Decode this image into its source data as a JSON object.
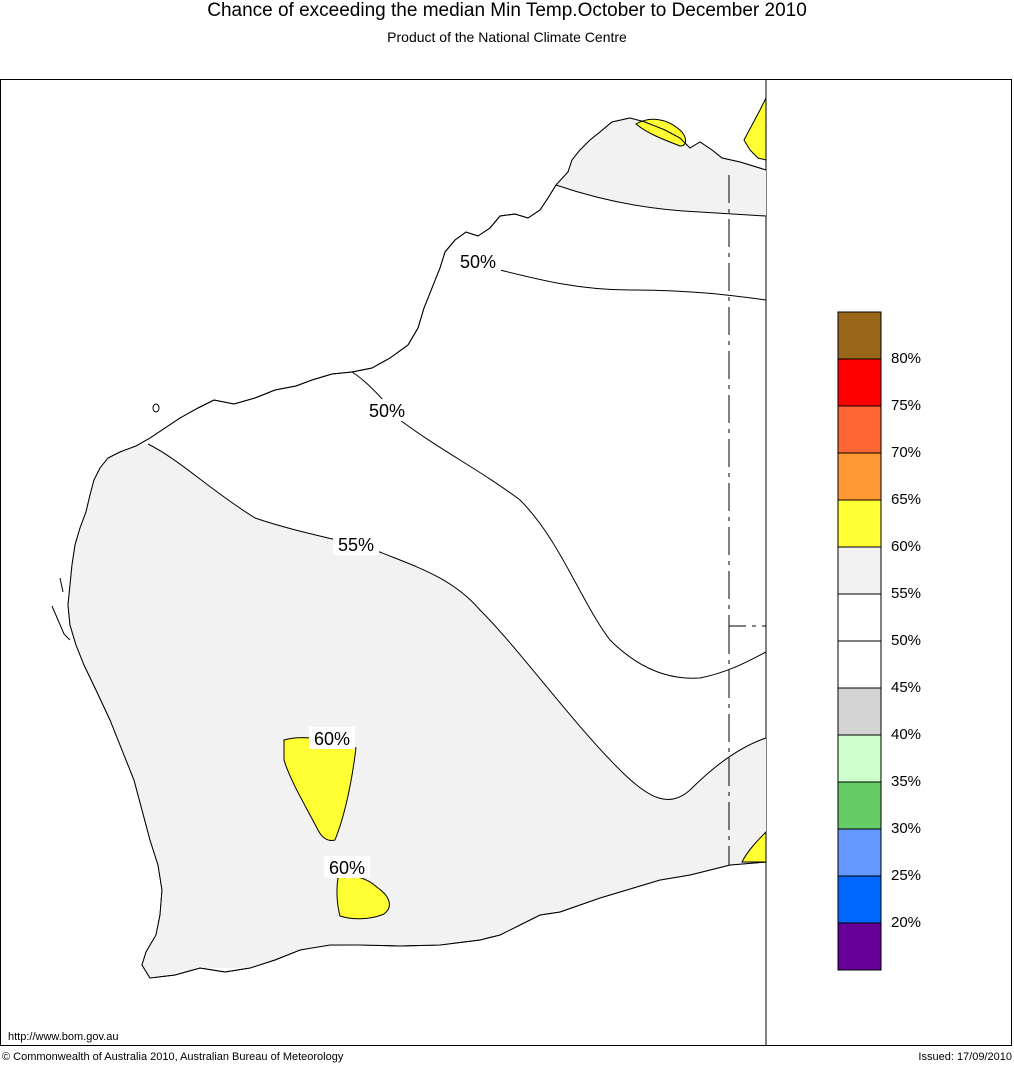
{
  "header": {
    "title": "Chance of exceeding the median Min Temp.October to December 2010",
    "subtitle": "Product of the National Climate Centre"
  },
  "footer": {
    "url": "http://www.bom.gov.au",
    "copyright": "© Commonwealth of Australia 2010, Australian Bureau of Meteorology",
    "issued": "Issued: 17/09/2010"
  },
  "map": {
    "contour_labels": [
      {
        "id": "north-50",
        "text": "50%",
        "value": 50
      },
      {
        "id": "mid-50",
        "text": "50%",
        "value": 50
      },
      {
        "id": "south-55",
        "text": "55%",
        "value": 55
      },
      {
        "id": "inland-60",
        "text": "60%",
        "value": 60
      },
      {
        "id": "southwest-60",
        "text": "60%",
        "value": 60
      }
    ],
    "fill_colors": {
      "land_above_55": "#f2f2f2",
      "land_50_55": "#ffffff",
      "above_60": "#ffff33"
    }
  },
  "legend": {
    "swatches": [
      {
        "color": "#996619"
      },
      {
        "color": "#ff0000"
      },
      {
        "color": "#ff6633"
      },
      {
        "color": "#ff9933"
      },
      {
        "color": "#ffff33"
      },
      {
        "color": "#f2f2f2"
      },
      {
        "color": "#ffffff"
      },
      {
        "color": "#ffffff"
      },
      {
        "color": "#d4d4d4"
      },
      {
        "color": "#ccffcc"
      },
      {
        "color": "#66cc66"
      },
      {
        "color": "#6699ff"
      },
      {
        "color": "#0066ff"
      },
      {
        "color": "#660099"
      }
    ],
    "labels": [
      "80%",
      "75%",
      "70%",
      "65%",
      "60%",
      "55%",
      "50%",
      "45%",
      "40%",
      "35%",
      "30%",
      "25%",
      "20%"
    ]
  }
}
